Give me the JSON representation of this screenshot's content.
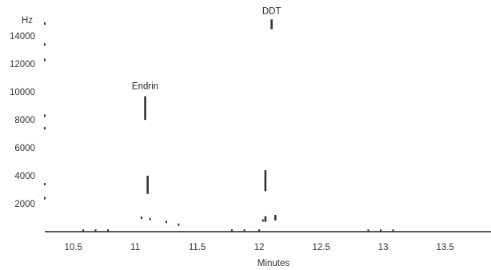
{
  "chart_data": {
    "type": "scatter",
    "title": "",
    "xlabel": "Minutes",
    "ylabel": "Hz",
    "xlim": [
      10.27,
      13.87
    ],
    "ylim": [
      0,
      15500
    ],
    "x_ticks": [
      10.5,
      11,
      11.5,
      12,
      12.5,
      13,
      13.5
    ],
    "x_tick_labels": [
      "10.5",
      "11",
      "11.5",
      "12",
      "12.5",
      "13",
      "13.5"
    ],
    "y_ticks": [
      2000,
      4000,
      6000,
      8000,
      10000,
      12000,
      14000
    ],
    "y_tick_labels": [
      "2000",
      "4000",
      "6000",
      "8000",
      "10000",
      "12000",
      "14000"
    ],
    "grid": false,
    "legend": "none",
    "color": "#333333",
    "segments": [
      {
        "x": 11.08,
        "y0": 8000,
        "y1": 9700
      },
      {
        "x": 11.1,
        "y0": 2700,
        "y1": 4000
      },
      {
        "x": 12.05,
        "y0": 2900,
        "y1": 4400
      },
      {
        "x": 12.1,
        "y0": 14500,
        "y1": 15200
      },
      {
        "x": 12.05,
        "y0": 700,
        "y1": 1100
      },
      {
        "x": 12.13,
        "y0": 800,
        "y1": 1200
      }
    ],
    "points": [
      {
        "x": 10.27,
        "y": 14900
      },
      {
        "x": 10.27,
        "y": 13400
      },
      {
        "x": 10.27,
        "y": 12300
      },
      {
        "x": 10.27,
        "y": 8300
      },
      {
        "x": 10.27,
        "y": 7400
      },
      {
        "x": 10.27,
        "y": 3400
      },
      {
        "x": 10.27,
        "y": 2400
      },
      {
        "x": 11.05,
        "y": 1000
      },
      {
        "x": 11.12,
        "y": 900
      },
      {
        "x": 11.25,
        "y": 700
      },
      {
        "x": 11.35,
        "y": 500
      },
      {
        "x": 12.03,
        "y": 800
      },
      {
        "x": 10.58,
        "y": 80
      },
      {
        "x": 10.68,
        "y": 80
      },
      {
        "x": 10.78,
        "y": 80
      },
      {
        "x": 11.78,
        "y": 80
      },
      {
        "x": 11.88,
        "y": 80
      },
      {
        "x": 12.0,
        "y": 80
      },
      {
        "x": 12.88,
        "y": 80
      },
      {
        "x": 12.98,
        "y": 80
      },
      {
        "x": 13.08,
        "y": 80
      }
    ],
    "annotations": [
      {
        "text": "Endrin",
        "x": 11.08,
        "y": 10200
      },
      {
        "text": "DDT",
        "x": 12.1,
        "y": 15600
      }
    ]
  }
}
